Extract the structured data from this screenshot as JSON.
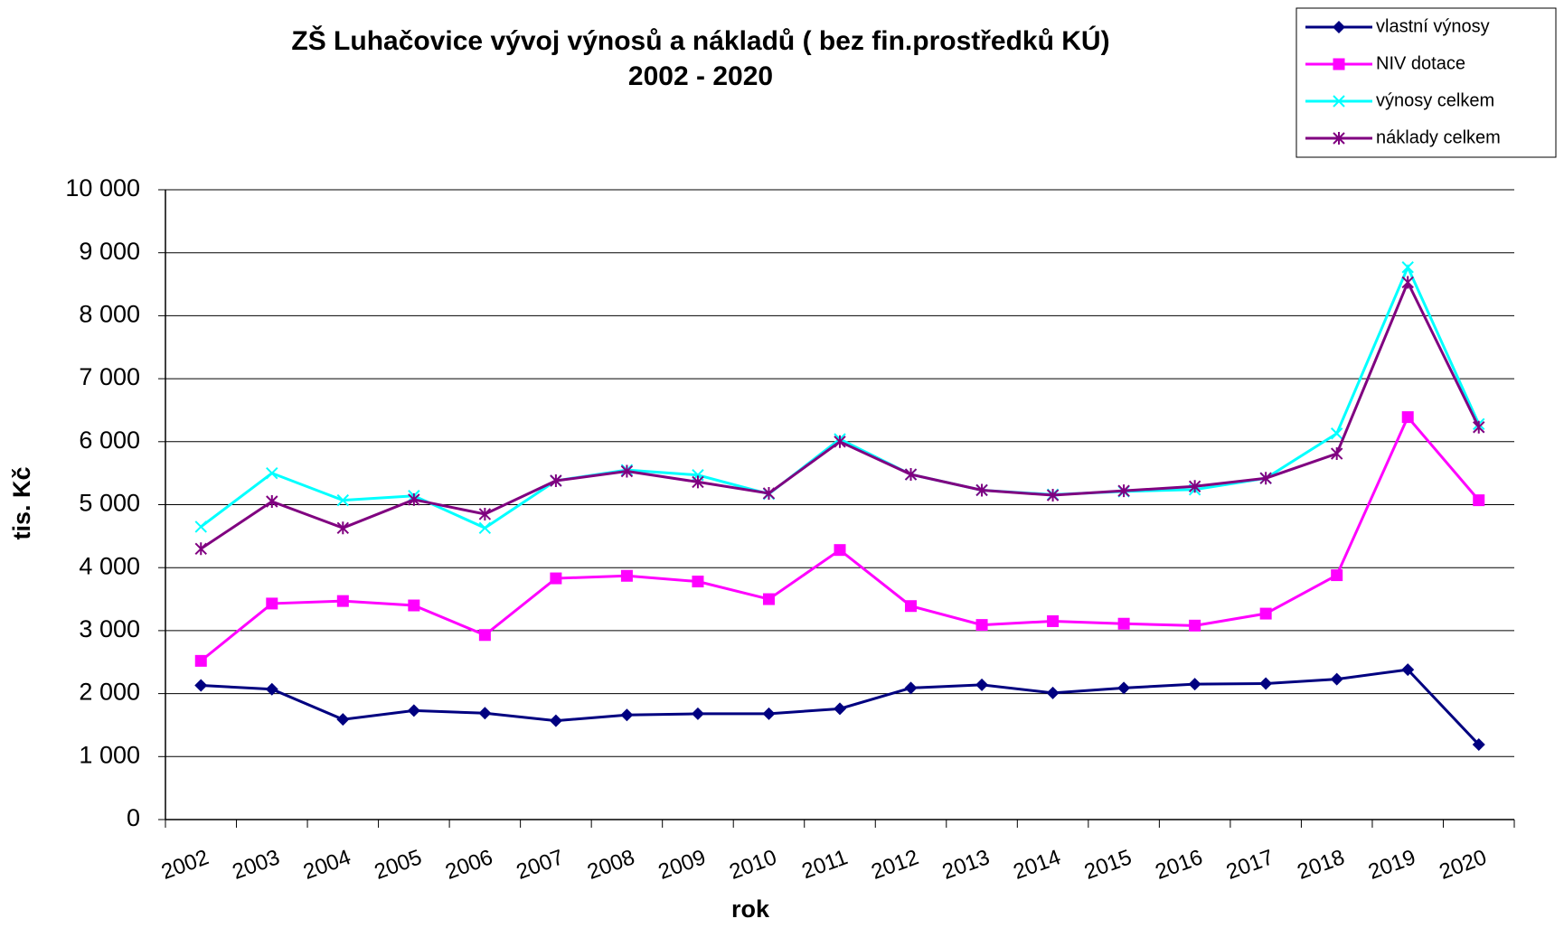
{
  "chart_data": {
    "type": "line",
    "title": "ZŠ Luhačovice vývoj výnosů a nákladů ( bez fin.prostředků KÚ)",
    "subtitle": "2002 - 2020",
    "x_label": "rok",
    "y_label": "tis. Kč",
    "categories": [
      "2002",
      "2003",
      "2004",
      "2005",
      "2006",
      "2007",
      "2008",
      "2009",
      "2010",
      "2011",
      "2012",
      "2013",
      "2014",
      "2015",
      "2016",
      "2017",
      "2018",
      "2019",
      "2020"
    ],
    "series": [
      {
        "name": "vlastní výnosy",
        "color": "#000080",
        "marker": "diamond",
        "values": [
          2130,
          2070,
          1590,
          1730,
          1690,
          1570,
          1660,
          1680,
          1680,
          1760,
          2090,
          2140,
          2010,
          2090,
          2150,
          2160,
          2230,
          2380,
          1190
        ]
      },
      {
        "name": "NIV dotace",
        "color": "#ff00ff",
        "marker": "square",
        "values": [
          2520,
          3430,
          3470,
          3400,
          2930,
          3830,
          3870,
          3780,
          3500,
          4280,
          3390,
          3090,
          3150,
          3110,
          3080,
          3270,
          3880,
          6390,
          5070
        ]
      },
      {
        "name": "výnosy celkem",
        "color": "#00ffff",
        "marker": "x",
        "values": [
          4650,
          5500,
          5070,
          5140,
          4630,
          5380,
          5550,
          5470,
          5170,
          6040,
          5480,
          5230,
          5160,
          5210,
          5240,
          5420,
          6130,
          8770,
          6280
        ]
      },
      {
        "name": "náklady celkem",
        "color": "#800080",
        "marker": "star",
        "values": [
          4300,
          5050,
          4630,
          5080,
          4850,
          5380,
          5530,
          5360,
          5180,
          6000,
          5480,
          5230,
          5150,
          5220,
          5290,
          5420,
          5810,
          8530,
          6230
        ]
      }
    ],
    "ylim": [
      0,
      10000
    ],
    "yticks": [
      0,
      {
        "value": 1000,
        "label": "1 000"
      },
      {
        "value": 2000,
        "label": "2 000"
      },
      {
        "value": 3000,
        "label": "3 000"
      },
      {
        "value": 4000,
        "label": "4 000"
      },
      {
        "value": 5000,
        "label": "5 000"
      },
      {
        "value": 6000,
        "label": "6 000"
      },
      {
        "value": 7000,
        "label": "7 000"
      },
      {
        "value": 8000,
        "label": "8 000"
      },
      {
        "value": 9000,
        "label": "9 000"
      },
      {
        "value": 10000,
        "label": "10 000"
      }
    ],
    "grid": true,
    "legend": "top-right"
  }
}
